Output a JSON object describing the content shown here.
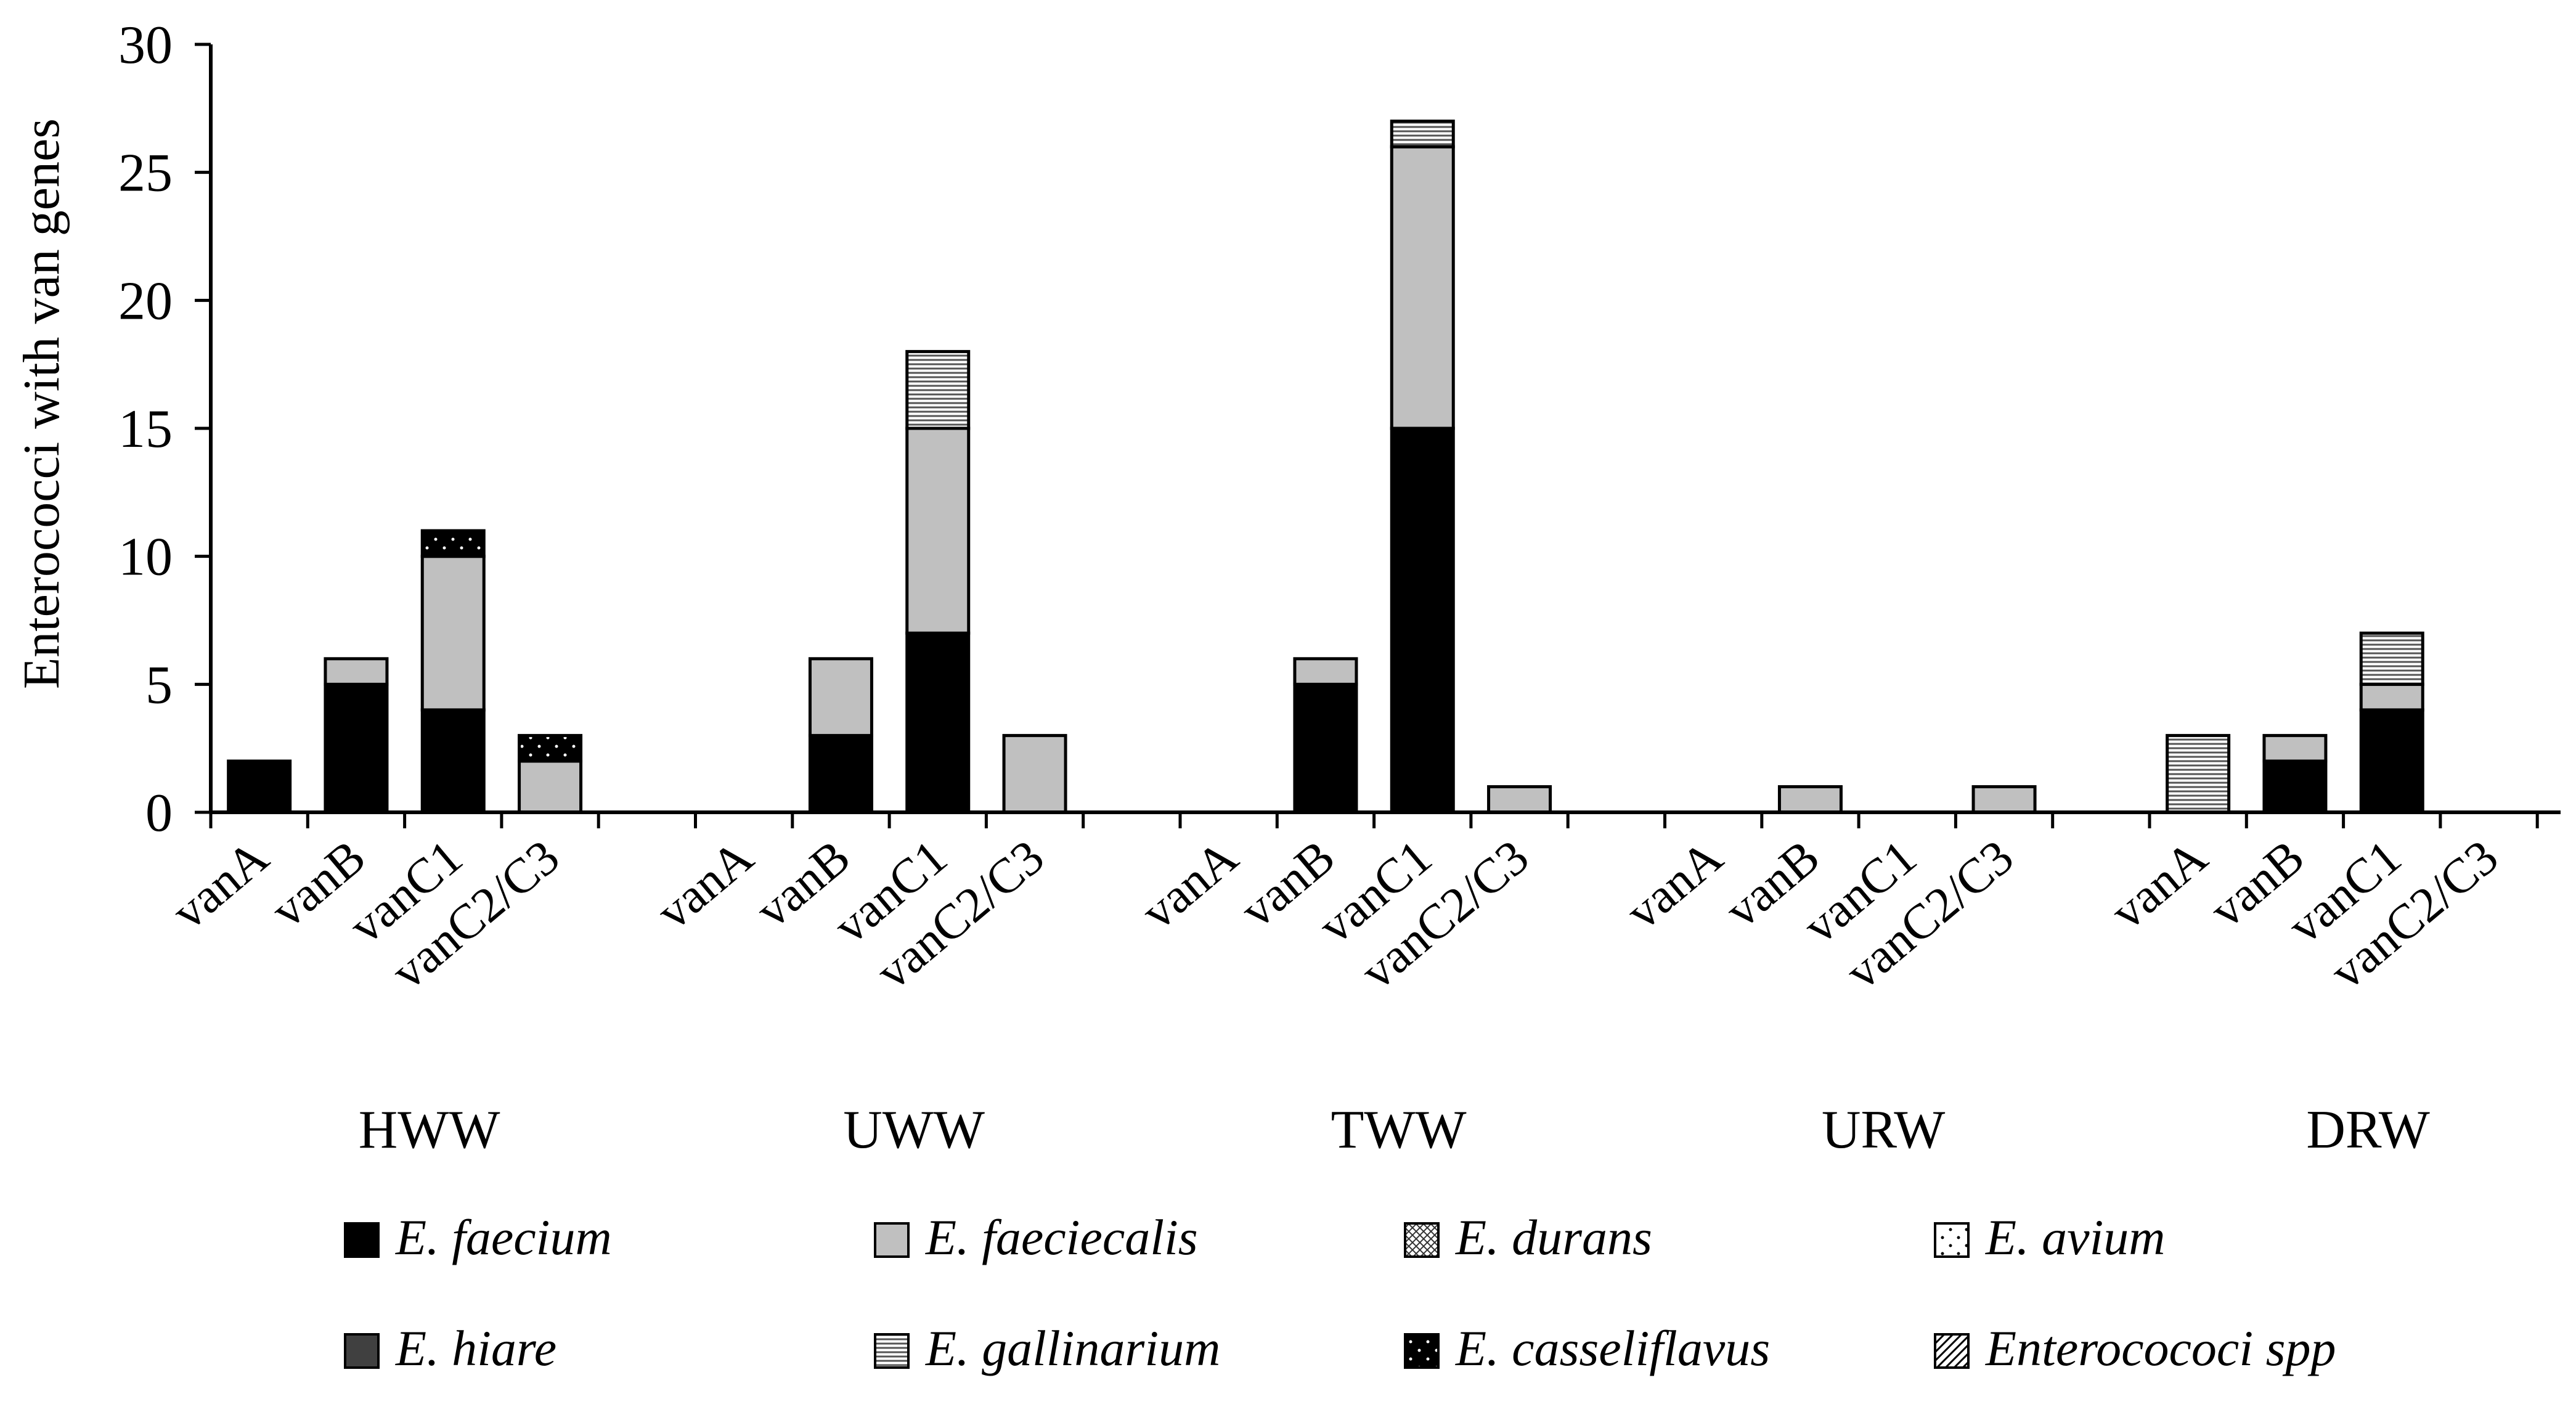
{
  "chart_data": {
    "type": "bar",
    "stacked": true,
    "title": "",
    "xlabel": "",
    "ylabel": "Enterococci with van genes",
    "ylim": [
      0,
      30
    ],
    "yticks": [
      0,
      5,
      10,
      15,
      20,
      25,
      30
    ],
    "groups": [
      "HWW",
      "UWW",
      "TWW",
      "URW",
      "DRW"
    ],
    "categories": [
      "vanA",
      "vanB",
      "vanC1",
      "vanC2/C3"
    ],
    "legend_position": "bottom",
    "series": [
      {
        "name": "E. faecium",
        "pattern": "solid-black",
        "values": [
          [
            2,
            5,
            4,
            0
          ],
          [
            0,
            3,
            7,
            0
          ],
          [
            0,
            5,
            15,
            0
          ],
          [
            0,
            0,
            0,
            0
          ],
          [
            0,
            2,
            4,
            0
          ]
        ]
      },
      {
        "name": "E. faeciecalis",
        "pattern": "solid-gray",
        "values": [
          [
            0,
            1,
            6,
            2
          ],
          [
            0,
            3,
            8,
            3
          ],
          [
            0,
            1,
            11,
            1
          ],
          [
            0,
            1,
            0,
            1
          ],
          [
            0,
            1,
            1,
            0
          ]
        ]
      },
      {
        "name": "E. durans",
        "pattern": "crosshatch",
        "values": [
          [
            0,
            0,
            0,
            0
          ],
          [
            0,
            0,
            0,
            0
          ],
          [
            0,
            0,
            0,
            0
          ],
          [
            0,
            0,
            0,
            0
          ],
          [
            0,
            0,
            0,
            0
          ]
        ]
      },
      {
        "name": "E. avium",
        "pattern": "dots-white",
        "values": [
          [
            0,
            0,
            0,
            0
          ],
          [
            0,
            0,
            0,
            0
          ],
          [
            0,
            0,
            0,
            0
          ],
          [
            0,
            0,
            0,
            0
          ],
          [
            0,
            0,
            0,
            0
          ]
        ]
      },
      {
        "name": "E. hiare",
        "pattern": "solid-darkgray",
        "values": [
          [
            0,
            0,
            0,
            0
          ],
          [
            0,
            0,
            0,
            0
          ],
          [
            0,
            0,
            0,
            0
          ],
          [
            0,
            0,
            0,
            0
          ],
          [
            0,
            0,
            0,
            0
          ]
        ]
      },
      {
        "name": "E. gallinarium",
        "pattern": "horizontal-lines",
        "values": [
          [
            0,
            0,
            0,
            0
          ],
          [
            0,
            0,
            3,
            0
          ],
          [
            0,
            0,
            1,
            0
          ],
          [
            0,
            0,
            0,
            0
          ],
          [
            3,
            0,
            2,
            0
          ]
        ]
      },
      {
        "name": "E. casseliflavus",
        "pattern": "dots-black",
        "values": [
          [
            0,
            0,
            1,
            1
          ],
          [
            0,
            0,
            0,
            0
          ],
          [
            0,
            0,
            0,
            0
          ],
          [
            0,
            0,
            0,
            0
          ],
          [
            0,
            0,
            0,
            0
          ]
        ]
      },
      {
        "name": "Enterocococi spp",
        "pattern": "diagonal-lines",
        "values": [
          [
            0,
            0,
            0,
            0
          ],
          [
            0,
            0,
            0,
            0
          ],
          [
            0,
            0,
            0,
            0
          ],
          [
            0,
            0,
            0,
            0
          ],
          [
            0,
            0,
            0,
            0
          ]
        ]
      }
    ]
  }
}
